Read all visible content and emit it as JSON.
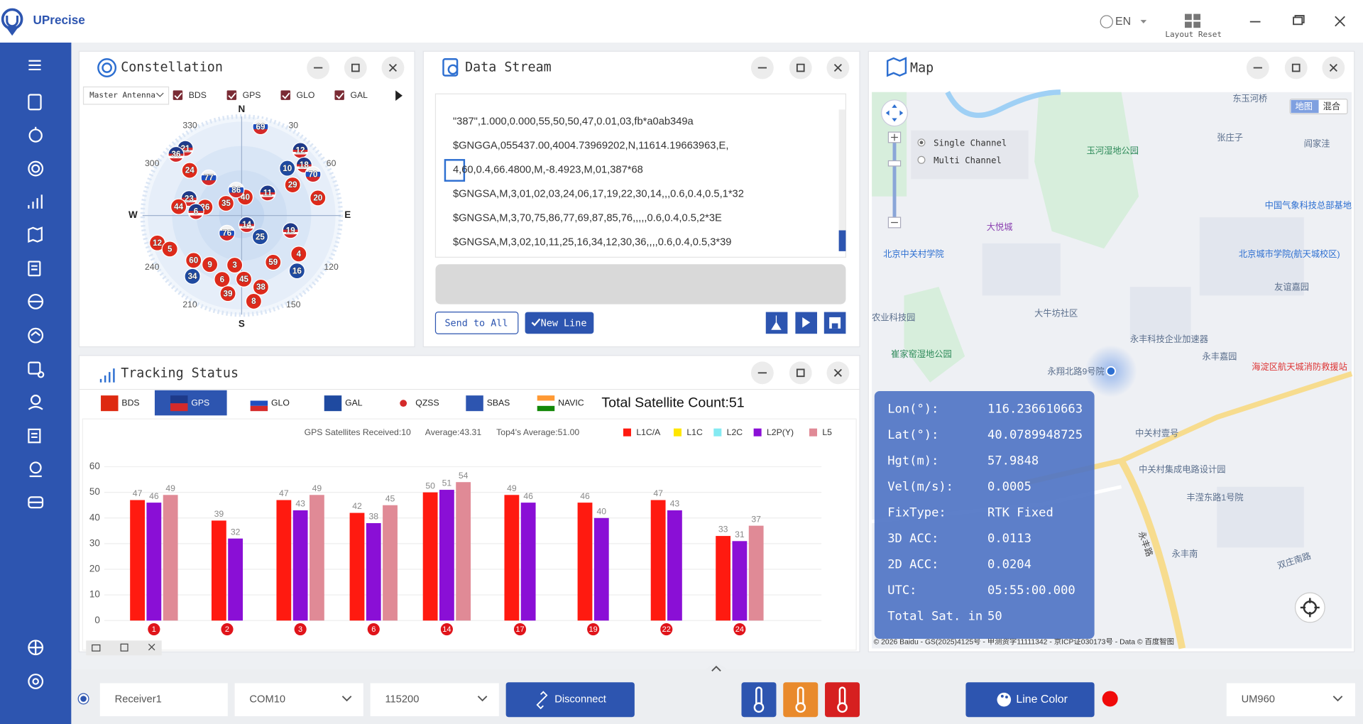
{
  "app": {
    "name": "UPrecise",
    "language": "EN",
    "layout_reset": "Layout Reset"
  },
  "constellation": {
    "title": "Constellation",
    "antenna": "Master Antenna",
    "systems": [
      "BDS",
      "GPS",
      "GLO",
      "GAL"
    ],
    "directions": [
      "N",
      "E",
      "S",
      "W"
    ],
    "azimuth_ticks": [
      30,
      60,
      120,
      150,
      210,
      240,
      300,
      330
    ],
    "satellites": [
      {
        "id": 69,
        "system": "GLO",
        "az": 12,
        "el": 3
      },
      {
        "id": 12,
        "system": "GPS",
        "az": 42,
        "el": 6
      },
      {
        "id": 21,
        "system": "GPS",
        "az": 320,
        "el": 6
      },
      {
        "id": 36,
        "system": "GPS",
        "az": 313,
        "el": 4
      },
      {
        "id": 24,
        "system": "BDS",
        "az": 311,
        "el": 24
      },
      {
        "id": 10,
        "system": "GAL",
        "az": 44,
        "el": 27
      },
      {
        "id": 18,
        "system": "GPS",
        "az": 51,
        "el": 13
      },
      {
        "id": 70,
        "system": "GLO",
        "az": 60,
        "el": 11
      },
      {
        "id": 77,
        "system": "GLO",
        "az": 319,
        "el": 42
      },
      {
        "id": 29,
        "system": "BDS",
        "az": 59,
        "el": 33
      },
      {
        "id": 11,
        "system": "GPS",
        "az": 49,
        "el": 57
      },
      {
        "id": 20,
        "system": "BDS",
        "az": 77,
        "el": 15
      },
      {
        "id": 23,
        "system": "GPS",
        "az": 288,
        "el": 37
      },
      {
        "id": 35,
        "system": "BDS",
        "az": 308,
        "el": 71
      },
      {
        "id": 40,
        "system": "BDS",
        "az": 11,
        "el": 72
      },
      {
        "id": 86,
        "system": "GLO",
        "az": 348,
        "el": 65
      },
      {
        "id": 44,
        "system": "BDS",
        "az": 278,
        "el": 29
      },
      {
        "id": 26,
        "system": "BDS",
        "az": 283,
        "el": 54
      },
      {
        "id": 6,
        "system": "GPS",
        "az": 275,
        "el": 46
      },
      {
        "id": 14,
        "system": "GPS",
        "az": 151,
        "el": 80
      },
      {
        "id": 76,
        "system": "GLO",
        "az": 220,
        "el": 68
      },
      {
        "id": 25,
        "system": "GAL",
        "az": 139,
        "el": 63
      },
      {
        "id": 19,
        "system": "GPS",
        "az": 107,
        "el": 41
      },
      {
        "id": 12,
        "system": "BDS",
        "az": 252,
        "el": 5
      },
      {
        "id": 5,
        "system": "BDS",
        "az": 245,
        "el": 14
      },
      {
        "id": 4,
        "system": "BDS",
        "az": 124,
        "el": 24
      },
      {
        "id": 59,
        "system": "BDS",
        "az": 146,
        "el": 36
      },
      {
        "id": 60,
        "system": "BDS",
        "az": 227,
        "el": 27
      },
      {
        "id": 9,
        "system": "BDS",
        "az": 213,
        "el": 34
      },
      {
        "id": 3,
        "system": "BDS",
        "az": 188,
        "el": 42
      },
      {
        "id": 34,
        "system": "GAL",
        "az": 219,
        "el": 15
      },
      {
        "id": 16,
        "system": "GAL",
        "az": 135,
        "el": 15
      },
      {
        "id": 6,
        "system": "BDS",
        "az": 197,
        "el": 26
      },
      {
        "id": 45,
        "system": "BDS",
        "az": 178,
        "el": 29
      },
      {
        "id": 38,
        "system": "BDS",
        "az": 165,
        "el": 19
      },
      {
        "id": 39,
        "system": "BDS",
        "az": 190,
        "el": 14
      },
      {
        "id": 8,
        "system": "BDS",
        "az": 172,
        "el": 7
      }
    ]
  },
  "data_stream": {
    "title": "Data Stream",
    "lines": [
      "\"387\",1.000,0.000,55,50,50,47,0.01,03,fb*a0ab349a",
      "$GNGGA,055437.00,4004.73969202,N,11614.19663963,E,",
      "4,60,0.4,66.4800,M,-8.4923,M,01,387*68",
      "$GNGSA,M,3,01,02,03,24,06,17,19,22,30,14,,,0.6,0.4,0.5,1*32",
      "$GNGSA,M,3,70,75,86,77,69,87,85,76,,,,,0.6,0.4,0.5,2*3E",
      "$GNGSA,M,3,02,10,11,25,16,34,12,30,36,,,,0.6,0.4,0.5,3*39"
    ],
    "send_all": "Send to All",
    "new_line": "New Line"
  },
  "map": {
    "title": "Map",
    "modes": [
      "Single Channel",
      "Multi Channel"
    ],
    "layers": [
      "地图",
      "混合"
    ],
    "places": [
      "玉河湿地公园",
      "张庄子",
      "阎家洼",
      "大悦城",
      "北京中关村学院",
      "北京城市学院(航天城校区)",
      "友谊嘉园",
      "大牛坊社区",
      "农业科技园",
      "永丰科技企业加速器",
      "崔家窑湿地公园",
      "永翔北路9号院",
      "永丰嘉园",
      "海淀区航天城消防救援站",
      "中关村壹号",
      "中关村集成电路设计园",
      "丰滢东路1号院",
      "永丰南",
      "东玉河桥",
      "中国气象科技总部基地",
      "双庄南路",
      "永丰路"
    ],
    "copyright": "© 2026 Baidu - GS(2025)4125号 - 甲测资字11111342 - 京ICP证030173号 - Data © 百度智图",
    "info": [
      {
        "key": "Lon(°):",
        "value": "116.236610663"
      },
      {
        "key": "Lat(°):",
        "value": "40.0789948725"
      },
      {
        "key": "Hgt(m):",
        "value": "57.9848"
      },
      {
        "key": "Vel(m/s):",
        "value": "0.0005"
      },
      {
        "key": "FixType:",
        "value": "RTK Fixed"
      },
      {
        "key": "3D ACC:",
        "value": "0.0113"
      },
      {
        "key": "2D ACC:",
        "value": "0.0204"
      },
      {
        "key": "UTC:",
        "value": "05:55:00.000"
      },
      {
        "key": "Total Sat. in",
        "value": "50"
      }
    ]
  },
  "tracking": {
    "title": "Tracking Status",
    "tabs": [
      "BDS",
      "GPS",
      "GLO",
      "GAL",
      "QZSS",
      "SBAS",
      "NAVIC"
    ],
    "active_tab": 1,
    "total": "Total Satellite Count:51",
    "received": "GPS Satellites Received:10",
    "average": "Average:43.31",
    "top4": "Top4's Average:51.00",
    "chart": {
      "type": "bar",
      "categories": [
        "1",
        "2",
        "3",
        "6",
        "14",
        "17",
        "19",
        "22",
        "24"
      ],
      "series": [
        {
          "name": "L1C/A",
          "color": "#ff1a10",
          "values": [
            47,
            39,
            47,
            42,
            50,
            49,
            46,
            47,
            33
          ]
        },
        {
          "name": "L1C",
          "color": "#ffe600",
          "values": [
            null,
            null,
            null,
            null,
            null,
            null,
            null,
            null,
            null
          ]
        },
        {
          "name": "L2C",
          "color": "#84eaf2",
          "values": [
            null,
            null,
            null,
            null,
            null,
            null,
            null,
            null,
            null
          ]
        },
        {
          "name": "L2P(Y)",
          "color": "#8a0fd6",
          "values": [
            46,
            32,
            43,
            38,
            51,
            46,
            40,
            43,
            31
          ]
        },
        {
          "name": "L5",
          "color": "#e08a96",
          "values": [
            49,
            null,
            49,
            45,
            54,
            null,
            null,
            null,
            37
          ]
        }
      ],
      "ylim": [
        0,
        60
      ],
      "yticks": [
        0,
        10,
        20,
        30,
        40,
        50,
        60
      ],
      "grid": true
    }
  },
  "bottom": {
    "receiver": "Receiver1",
    "port": "COM10",
    "baud": "115200",
    "disconnect": "Disconnect",
    "line_color": "Line Color",
    "model": "UM960"
  }
}
